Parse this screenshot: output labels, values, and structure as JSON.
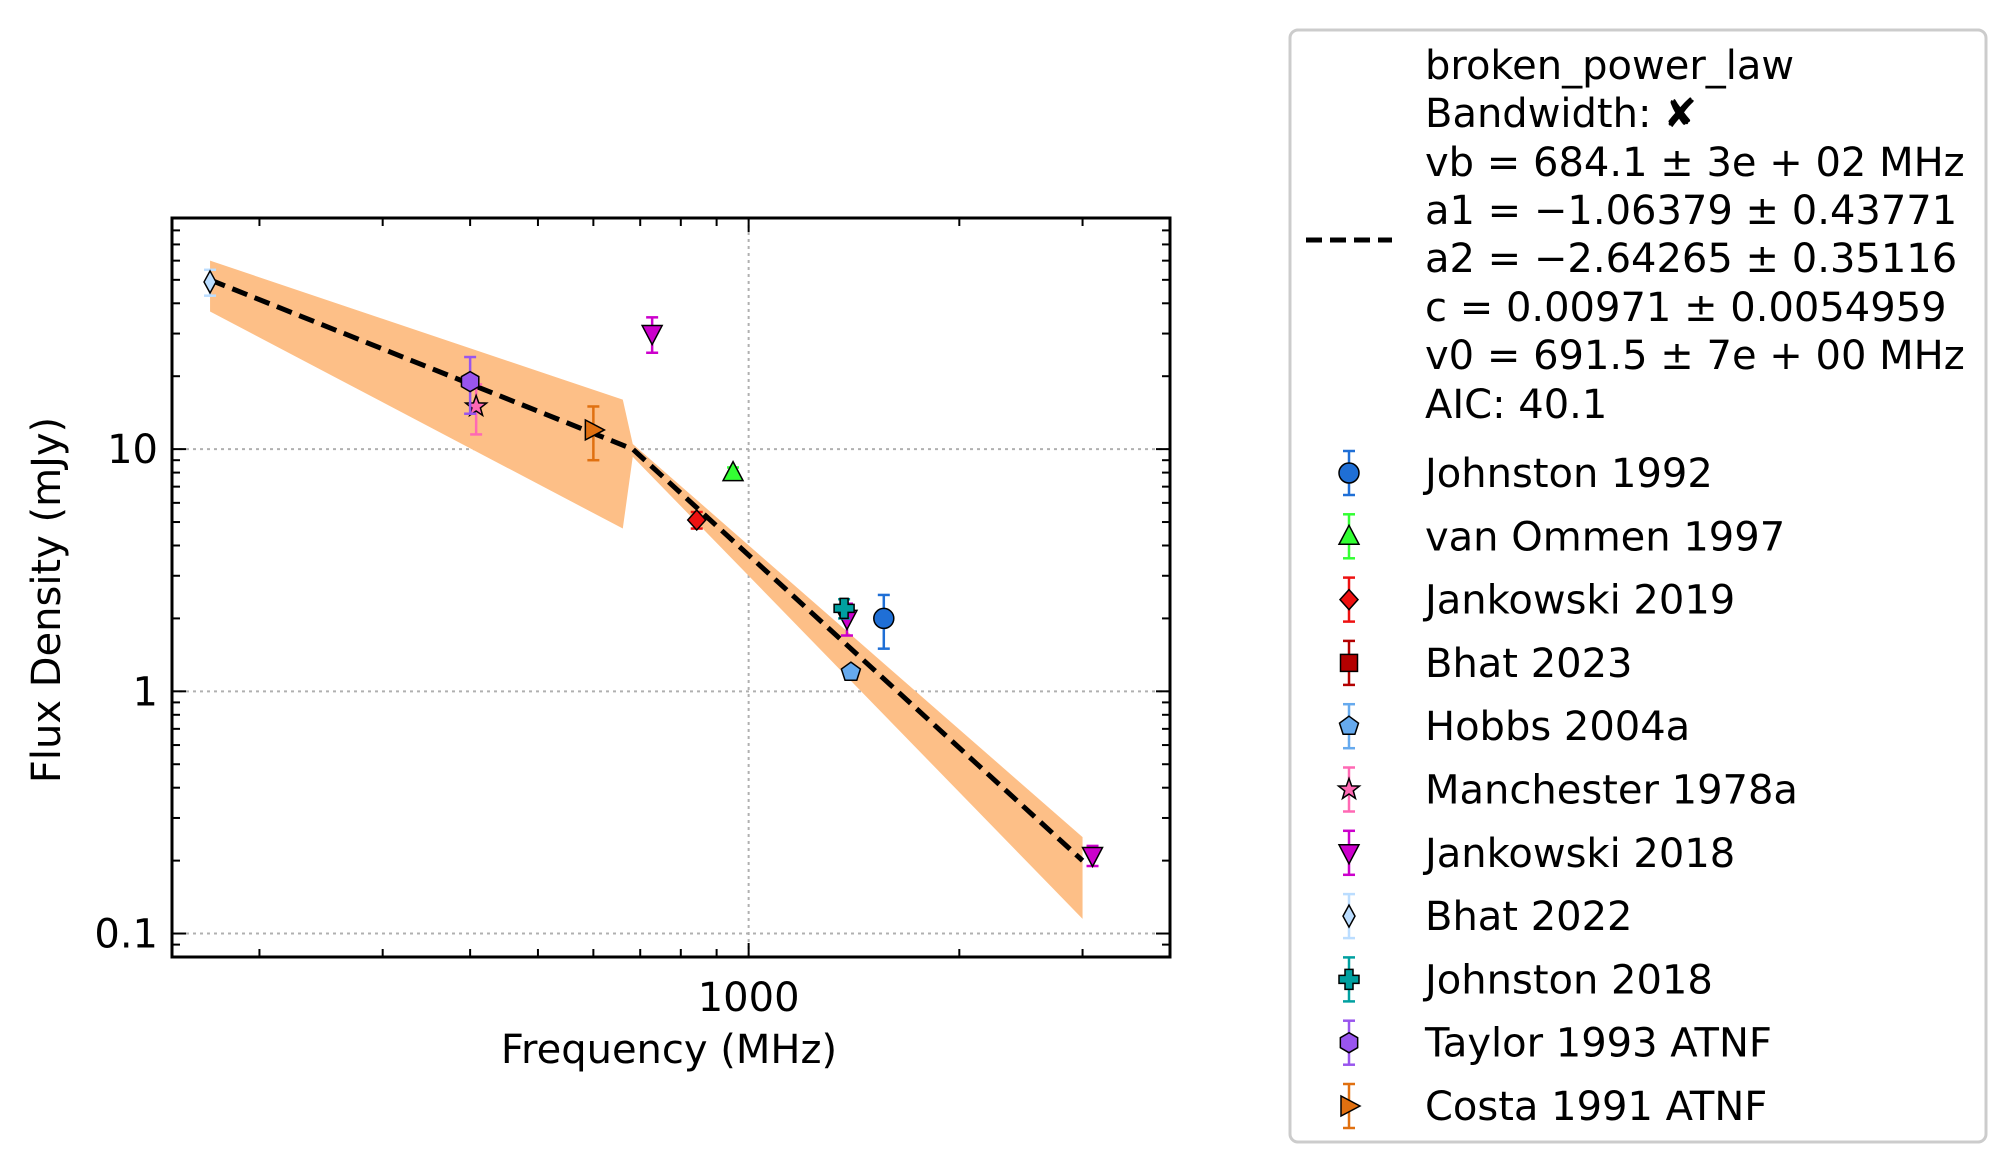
{
  "chart_data": {
    "type": "scatter",
    "title": "",
    "xlabel": "Frequency (MHz)",
    "ylabel": "Flux Density (mJy)",
    "xscale": "log",
    "yscale": "log",
    "xlim": [
      150,
      4000
    ],
    "ylim": [
      0.08,
      90
    ],
    "grid": true,
    "legend_placement": "outside-right",
    "x_tick_labels": [
      {
        "value": 1000,
        "label": "1000"
      }
    ],
    "y_tick_labels": [
      {
        "value": 0.1,
        "label": "0.1"
      },
      {
        "value": 1,
        "label": "1"
      },
      {
        "value": 10,
        "label": "10"
      }
    ],
    "fit": {
      "name": "broken_power_law",
      "bandwidth_label": "Bandwidth:",
      "bandwidth_mark": "✘",
      "params": [
        "vb = 684.1 ± 3e + 02 MHz",
        "a1 = −1.06379 ± 0.43771",
        "a2 = −2.64265 ± 0.35116",
        "c = 0.00971 ± 0.0054959",
        "v0 = 691.5 ± 7e + 00 MHz"
      ],
      "aic": "AIC: 40.1",
      "line_color": "#000000",
      "band_color": "#fdbf87",
      "curve": [
        [
          170,
          50
        ],
        [
          683,
          10
        ],
        [
          3000,
          0.2
        ]
      ],
      "band_upper": [
        [
          170,
          60
        ],
        [
          661,
          16
        ],
        [
          683,
          10.5
        ],
        [
          3000,
          0.25
        ]
      ],
      "band_lower": [
        [
          170,
          37
        ],
        [
          661,
          4.7
        ],
        [
          683,
          9.3
        ],
        [
          3000,
          0.115
        ]
      ]
    },
    "series": [
      {
        "name": "Johnston 1992",
        "marker": "circle",
        "color": "#1f6fd6",
        "points": [
          {
            "x": 1560,
            "y": 2.0,
            "ylo": 1.5,
            "yhi": 2.5
          }
        ]
      },
      {
        "name": "van Ommen 1997",
        "marker": "triangle-up",
        "color": "#33ff33",
        "points": [
          {
            "x": 950,
            "y": 8.0,
            "ylo": 7.6,
            "yhi": 8.4
          }
        ]
      },
      {
        "name": "Jankowski 2019",
        "marker": "diamond",
        "color": "#ee1111",
        "points": [
          {
            "x": 843,
            "y": 5.1,
            "ylo": 4.7,
            "yhi": 5.5
          }
        ]
      },
      {
        "name": "Bhat 2023",
        "marker": "square",
        "color": "#b30000",
        "points": []
      },
      {
        "name": "Hobbs 2004a",
        "marker": "pentagon",
        "color": "#66aaee",
        "points": [
          {
            "x": 1400,
            "y": 1.2,
            "ylo": 1.15,
            "yhi": 1.25
          }
        ]
      },
      {
        "name": "Manchester 1978a",
        "marker": "star",
        "color": "#ff69b4",
        "points": [
          {
            "x": 408,
            "y": 15,
            "ylo": 11.5,
            "yhi": 18.5
          }
        ]
      },
      {
        "name": "Jankowski 2018",
        "marker": "triangle-down",
        "color": "#cc00cc",
        "points": [
          {
            "x": 728,
            "y": 30,
            "ylo": 25,
            "yhi": 35
          },
          {
            "x": 1382,
            "y": 2.0,
            "ylo": 1.7,
            "yhi": 2.3
          },
          {
            "x": 3100,
            "y": 0.21,
            "ylo": 0.19,
            "yhi": 0.23
          }
        ]
      },
      {
        "name": "Bhat 2022",
        "marker": "thin-diamond",
        "color": "#bbddff",
        "points": [
          {
            "x": 170,
            "y": 49,
            "ylo": 43,
            "yhi": 55
          }
        ]
      },
      {
        "name": "Johnston 2018",
        "marker": "plus",
        "color": "#00a0a0",
        "points": [
          {
            "x": 1369,
            "y": 2.2,
            "ylo": 2.0,
            "yhi": 2.4
          }
        ]
      },
      {
        "name": "Taylor 1993 ATNF",
        "marker": "hexagon",
        "color": "#9955ee",
        "points": [
          {
            "x": 400,
            "y": 19,
            "ylo": 14,
            "yhi": 24
          }
        ]
      },
      {
        "name": "Costa 1991 ATNF",
        "marker": "triangle-right",
        "color": "#e07010",
        "points": [
          {
            "x": 600,
            "y": 12,
            "ylo": 9,
            "yhi": 15
          }
        ]
      }
    ]
  }
}
